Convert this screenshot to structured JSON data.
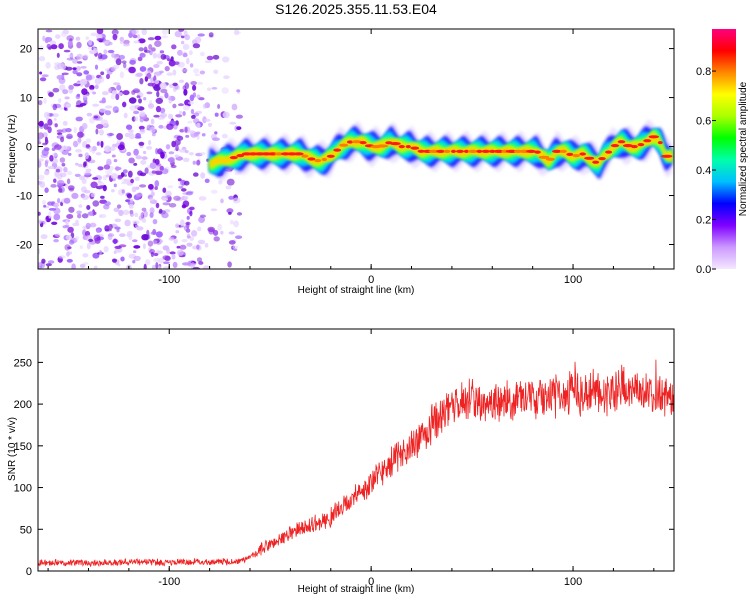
{
  "chart_data": [
    {
      "type": "heatmap",
      "title": "S126.2025.355.11.53.E04",
      "xlabel": "Height of straight line (km)",
      "ylabel": "Frequency (Hz)",
      "xlim": [
        -165,
        150
      ],
      "ylim": [
        -25,
        24
      ],
      "x_ticks": [
        -100,
        0,
        100
      ],
      "x_tick_labels": [
        "-100",
        "0",
        "100"
      ],
      "y_ticks": [
        -20,
        -10,
        0,
        10,
        20
      ],
      "y_tick_labels": [
        "-20",
        "-10",
        "0",
        "10",
        "20"
      ],
      "noise_region_x": [
        -165,
        -65
      ],
      "signal_ridge": {
        "x": [
          -80,
          -70,
          -62,
          -55,
          -48,
          -40,
          -35,
          -30,
          -25,
          -20,
          -15,
          -10,
          -5,
          0,
          5,
          10,
          15,
          20,
          25,
          30,
          40,
          50,
          60,
          70,
          78,
          82,
          85,
          88,
          92,
          96,
          100,
          105,
          110,
          113,
          115,
          118,
          120,
          124,
          128,
          132,
          136,
          140,
          143,
          146,
          149
        ],
        "y": [
          -3.5,
          -2.5,
          -1.5,
          -1.5,
          -1.5,
          -1.5,
          -1.5,
          -2.5,
          -3,
          -2,
          0,
          1,
          1,
          0,
          0,
          1,
          0,
          0,
          -1,
          -1,
          -1,
          -1,
          -1,
          -1,
          -1,
          -1,
          -2,
          -3,
          -1,
          -1,
          -2,
          -1.5,
          -3,
          -3.5,
          -2,
          -1,
          0,
          1,
          0,
          0,
          1,
          2,
          1,
          -2,
          -2
        ]
      },
      "colorbar": {
        "label": "Normalized spectral amplitude",
        "ticks": [
          "0.0",
          "0.2",
          "0.4",
          "0.6",
          "0.8"
        ],
        "tick_values": [
          0,
          0.2,
          0.4,
          0.6,
          0.8
        ],
        "range": [
          0,
          0.97
        ],
        "colors": [
          "#f4e8ff",
          "#cc99ff",
          "#7f00ff",
          "#0000ff",
          "#00bfff",
          "#00ffaa",
          "#00ff00",
          "#aaff00",
          "#ffff00",
          "#ff8800",
          "#ff0000",
          "#ff0080"
        ]
      }
    },
    {
      "type": "line",
      "title": "",
      "xlabel": "Height of straight line (km)",
      "ylabel": "SNR (10 * v/v)",
      "xlim": [
        -165,
        150
      ],
      "ylim": [
        0,
        290
      ],
      "x_ticks": [
        -100,
        0,
        100
      ],
      "x_tick_labels": [
        "-100",
        "0",
        "100"
      ],
      "y_ticks": [
        0,
        50,
        100,
        150,
        200,
        250
      ],
      "y_tick_labels": [
        "0",
        "50",
        "100",
        "150",
        "200",
        "250"
      ],
      "line_color": "#ee2222",
      "series": [
        {
          "name": "SNR",
          "x": [
            -165,
            -150,
            -140,
            -130,
            -120,
            -110,
            -100,
            -90,
            -80,
            -70,
            -65,
            -60,
            -55,
            -50,
            -45,
            -40,
            -35,
            -30,
            -25,
            -20,
            -15,
            -10,
            -5,
            0,
            5,
            10,
            15,
            20,
            25,
            30,
            35,
            40,
            45,
            50,
            55,
            60,
            65,
            70,
            75,
            80,
            85,
            90,
            95,
            100,
            105,
            110,
            115,
            120,
            125,
            130,
            135,
            140,
            145,
            150
          ],
          "values": [
            10,
            10,
            10,
            10,
            11,
            11,
            10,
            11,
            11,
            11,
            12,
            15,
            25,
            32,
            38,
            45,
            50,
            55,
            58,
            65,
            75,
            85,
            95,
            105,
            118,
            130,
            140,
            150,
            162,
            175,
            185,
            192,
            200,
            205,
            203,
            205,
            205,
            203,
            205,
            210,
            205,
            210,
            210,
            215,
            212,
            215,
            212,
            218,
            220,
            213,
            215,
            212,
            210,
            205
          ]
        }
      ]
    }
  ]
}
